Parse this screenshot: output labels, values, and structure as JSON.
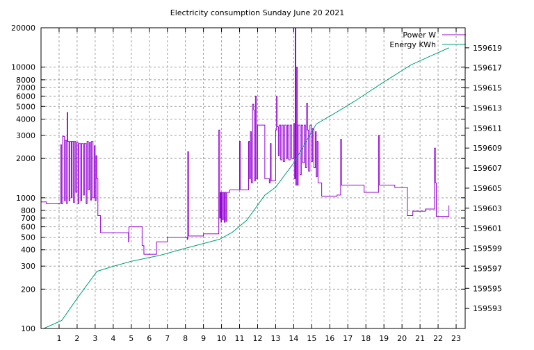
{
  "chart_data": {
    "type": "line",
    "title": "Electricity consumption Sunday June 20 2021",
    "xlabel": "",
    "ylabel": "",
    "xlim": [
      0,
      23.5
    ],
    "x_ticks": [
      1,
      2,
      3,
      4,
      5,
      6,
      7,
      8,
      9,
      10,
      11,
      12,
      13,
      14,
      15,
      16,
      17,
      18,
      19,
      20,
      21,
      22,
      23
    ],
    "y_scale": "log",
    "ylim": [
      100,
      20000
    ],
    "y_ticks": [
      100,
      200,
      300,
      400,
      500,
      600,
      700,
      800,
      1000,
      2000,
      3000,
      4000,
      5000,
      6000,
      7000,
      8000,
      10000,
      20000
    ],
    "y2lim": [
      159591,
      159621
    ],
    "y2_ticks": [
      159593,
      159595,
      159597,
      159599,
      159601,
      159603,
      159605,
      159607,
      159609,
      159611,
      159613,
      159615,
      159617,
      159619
    ],
    "grid": true,
    "legend_position": "top-right",
    "colors": {
      "power": "#9400d3",
      "energy": "#009e73"
    },
    "series": [
      {
        "name": "Power W",
        "axis": "left",
        "style": "steps",
        "points": [
          [
            0,
            930
          ],
          [
            0.3,
            900
          ],
          [
            1.0,
            910
          ],
          [
            1.1,
            2550
          ],
          [
            1.13,
            900
          ],
          [
            1.2,
            2950
          ],
          [
            1.3,
            950
          ],
          [
            1.35,
            2750
          ],
          [
            1.42,
            900
          ],
          [
            1.45,
            4500
          ],
          [
            1.48,
            2700
          ],
          [
            1.55,
            950
          ],
          [
            1.6,
            2700
          ],
          [
            1.68,
            1000
          ],
          [
            1.72,
            2700
          ],
          [
            1.8,
            920
          ],
          [
            1.85,
            2700
          ],
          [
            1.92,
            1100
          ],
          [
            1.98,
            2650
          ],
          [
            2.05,
            900
          ],
          [
            2.1,
            2600
          ],
          [
            2.2,
            950
          ],
          [
            2.25,
            2600
          ],
          [
            2.35,
            1050
          ],
          [
            2.4,
            2600
          ],
          [
            2.5,
            900
          ],
          [
            2.55,
            2700
          ],
          [
            2.62,
            1150
          ],
          [
            2.68,
            2650
          ],
          [
            2.75,
            960
          ],
          [
            2.8,
            2700
          ],
          [
            2.88,
            1000
          ],
          [
            2.95,
            2500
          ],
          [
            3.0,
            950
          ],
          [
            3.05,
            2100
          ],
          [
            3.1,
            1400
          ],
          [
            3.15,
            730
          ],
          [
            3.3,
            540
          ],
          [
            4.85,
            460
          ],
          [
            4.87,
            600
          ],
          [
            5.6,
            430
          ],
          [
            5.7,
            370
          ],
          [
            6.4,
            460
          ],
          [
            7.0,
            500
          ],
          [
            8.1,
            480
          ],
          [
            8.13,
            2250
          ],
          [
            8.17,
            510
          ],
          [
            9.0,
            530
          ],
          [
            9.85,
            3300
          ],
          [
            9.9,
            700
          ],
          [
            9.93,
            1100
          ],
          [
            9.97,
            650
          ],
          [
            10.0,
            1100
          ],
          [
            10.05,
            680
          ],
          [
            10.1,
            1100
          ],
          [
            10.15,
            650
          ],
          [
            10.2,
            1100
          ],
          [
            10.25,
            660
          ],
          [
            10.3,
            1100
          ],
          [
            10.45,
            1150
          ],
          [
            11.0,
            2700
          ],
          [
            11.05,
            1150
          ],
          [
            11.5,
            2700
          ],
          [
            11.55,
            1400
          ],
          [
            11.6,
            3200
          ],
          [
            11.65,
            1300
          ],
          [
            11.72,
            5200
          ],
          [
            11.78,
            4700
          ],
          [
            11.82,
            1350
          ],
          [
            11.88,
            6000
          ],
          [
            11.93,
            1400
          ],
          [
            12.0,
            3600
          ],
          [
            12.2,
            3600
          ],
          [
            12.4,
            1400
          ],
          [
            12.65,
            1300
          ],
          [
            12.7,
            2600
          ],
          [
            12.75,
            1350
          ],
          [
            13.0,
            3300
          ],
          [
            13.05,
            6000
          ],
          [
            13.08,
            3500
          ],
          [
            13.15,
            2100
          ],
          [
            13.2,
            3600
          ],
          [
            13.28,
            1950
          ],
          [
            13.35,
            3600
          ],
          [
            13.42,
            1900
          ],
          [
            13.5,
            3600
          ],
          [
            13.58,
            2000
          ],
          [
            13.65,
            3600
          ],
          [
            13.72,
            1950
          ],
          [
            13.8,
            3600
          ],
          [
            13.88,
            2000
          ],
          [
            14.0,
            3700
          ],
          [
            14.05,
            1400
          ],
          [
            14.08,
            20000
          ],
          [
            14.12,
            1250
          ],
          [
            14.15,
            10000
          ],
          [
            14.2,
            1250
          ],
          [
            14.25,
            3600
          ],
          [
            14.35,
            1500
          ],
          [
            14.42,
            3600
          ],
          [
            14.5,
            1850
          ],
          [
            14.58,
            3600
          ],
          [
            14.65,
            1700
          ],
          [
            14.72,
            5300
          ],
          [
            14.76,
            3300
          ],
          [
            14.82,
            1600
          ],
          [
            14.9,
            3600
          ],
          [
            14.98,
            1900
          ],
          [
            15.05,
            3400
          ],
          [
            15.12,
            1700
          ],
          [
            15.2,
            3200
          ],
          [
            15.25,
            1450
          ],
          [
            15.3,
            2700
          ],
          [
            15.35,
            1300
          ],
          [
            15.55,
            1030
          ],
          [
            16.4,
            1050
          ],
          [
            16.6,
            2800
          ],
          [
            16.65,
            1250
          ],
          [
            17.9,
            1100
          ],
          [
            18.7,
            3000
          ],
          [
            18.75,
            1250
          ],
          [
            19.6,
            1200
          ],
          [
            20.3,
            730
          ],
          [
            20.6,
            790
          ],
          [
            21.3,
            820
          ],
          [
            21.8,
            2400
          ],
          [
            21.85,
            1300
          ],
          [
            21.9,
            720
          ],
          [
            22.6,
            870
          ],
          [
            22.62,
            870
          ]
        ]
      },
      {
        "name": "Energy KWh",
        "axis": "right",
        "style": "lines",
        "points": [
          [
            0.15,
            159591.0
          ],
          [
            1.15,
            159591.8
          ],
          [
            2.0,
            159594.0
          ],
          [
            3.1,
            159596.7
          ],
          [
            4.0,
            159597.2
          ],
          [
            5.0,
            159597.7
          ],
          [
            6.6,
            159598.3
          ],
          [
            8.0,
            159599.0
          ],
          [
            9.9,
            159599.9
          ],
          [
            10.6,
            159600.6
          ],
          [
            11.4,
            159601.8
          ],
          [
            12.0,
            159603.3
          ],
          [
            12.4,
            159604.3
          ],
          [
            13.0,
            159605.1
          ],
          [
            14.0,
            159607.5
          ],
          [
            15.25,
            159611.4
          ],
          [
            16.3,
            159612.5
          ],
          [
            17.4,
            159613.7
          ],
          [
            19.0,
            159615.6
          ],
          [
            20.5,
            159617.3
          ],
          [
            21.6,
            159618.2
          ],
          [
            22.6,
            159619.0
          ]
        ]
      }
    ]
  }
}
